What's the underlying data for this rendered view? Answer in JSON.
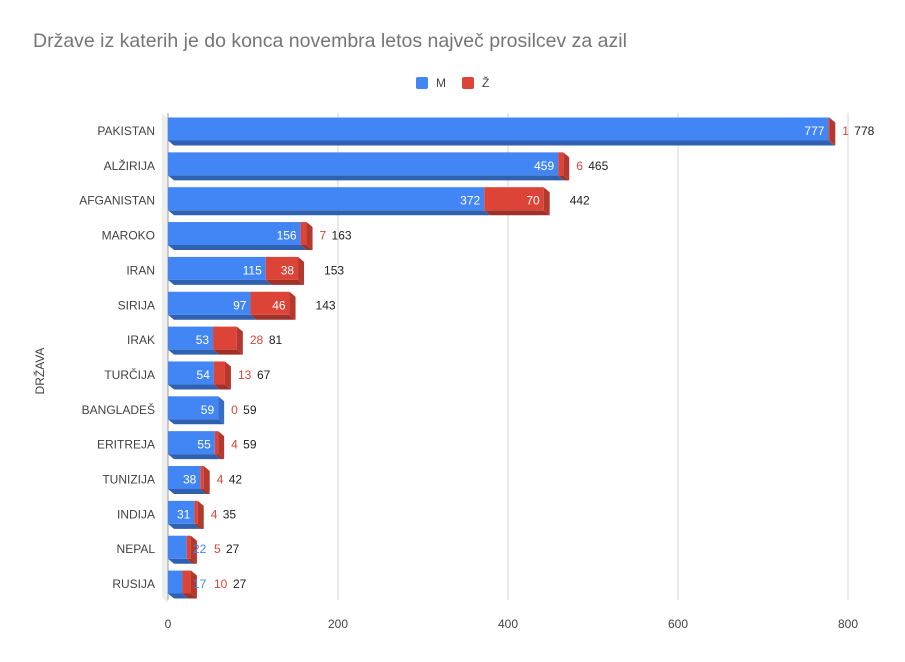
{
  "chart_data": {
    "type": "bar",
    "orientation": "horizontal",
    "stacked": true,
    "title": "Države iz katerih je do konca novembra letos največ prosilcev za azil",
    "ylabel": "DRŽAVA",
    "xlabel": "",
    "xlim": [
      0,
      800
    ],
    "xticks": [
      0,
      200,
      400,
      600,
      800
    ],
    "grid": true,
    "legend_position": "top",
    "categories": [
      "PAKISTAN",
      "ALŽIRIJA",
      "AFGANISTAN",
      "MAROKO",
      "IRAN",
      "SIRIJA",
      "IRAK",
      "TURČIJA",
      "BANGLADEŠ",
      "ERITREJA",
      "TUNIZIJA",
      "INDIJA",
      "NEPAL",
      "RUSIJA"
    ],
    "series": [
      {
        "name": "M",
        "color": "#4285f4",
        "values": [
          777,
          459,
          372,
          156,
          115,
          97,
          53,
          54,
          59,
          55,
          38,
          31,
          22,
          17
        ]
      },
      {
        "name": "Ž",
        "color": "#db4437",
        "values": [
          1,
          6,
          70,
          7,
          38,
          46,
          28,
          13,
          0,
          4,
          4,
          4,
          5,
          10
        ]
      }
    ],
    "totals": [
      778,
      465,
      442,
      163,
      153,
      143,
      81,
      67,
      59,
      59,
      42,
      35,
      27,
      27
    ]
  }
}
